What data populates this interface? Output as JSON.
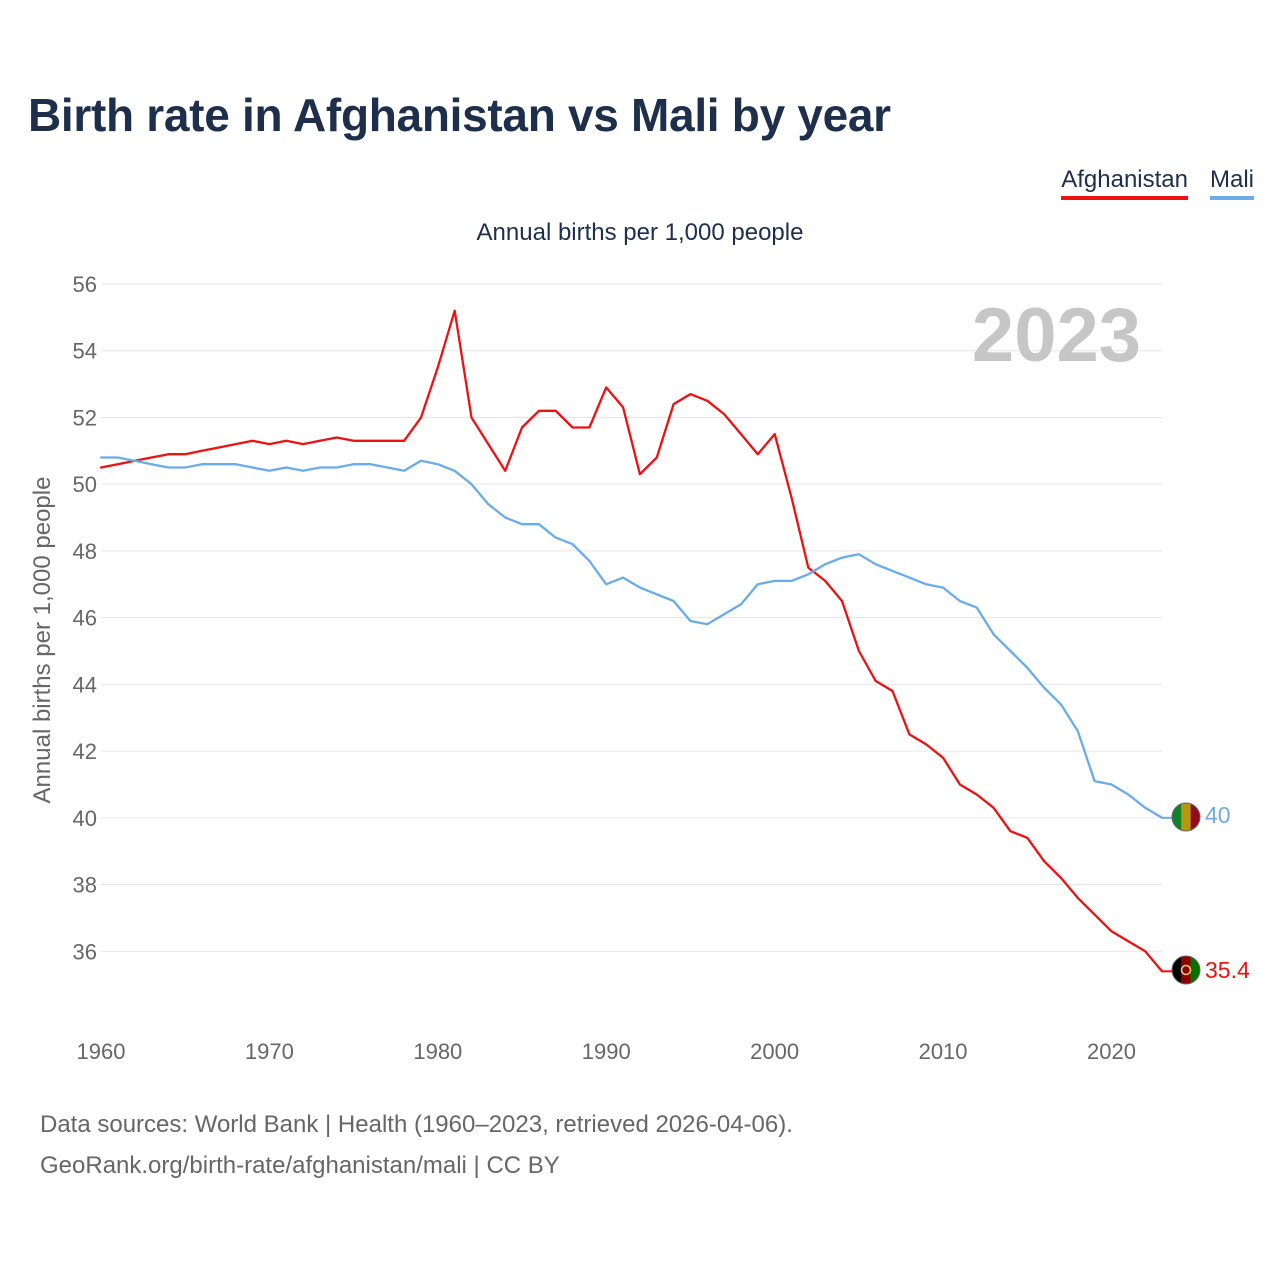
{
  "header": {
    "title": "Birth rate in Afghanistan vs Mali by year"
  },
  "legend": {
    "items": [
      {
        "label": "Afghanistan",
        "color": "#ee1111"
      },
      {
        "label": "Mali",
        "color": "#6aacea"
      }
    ]
  },
  "footer": {
    "line1": "Data sources: World Bank | Health (1960–2023, retrieved 2026-04-06).",
    "line2": "GeoRank.org/birth-rate/afghanistan/mali | CC BY"
  },
  "chart_data": {
    "type": "line",
    "title": "Birth rate in Afghanistan vs Mali by year",
    "subtitle": "Annual births per 1,000 people",
    "ylabel": "Annual births per 1,000 people",
    "xlabel": "",
    "year_label": "2023",
    "xlim": [
      1960,
      2023
    ],
    "ylim": [
      34,
      56
    ],
    "xticks": [
      1960,
      1970,
      1980,
      1990,
      2000,
      2010,
      2020
    ],
    "yticks": [
      36,
      38,
      40,
      42,
      44,
      46,
      48,
      50,
      52,
      54,
      56
    ],
    "grid": true,
    "legend_position": "top-right",
    "series": [
      {
        "name": "Afghanistan",
        "color": "#ee1111",
        "end_label": "35.4",
        "flag": "afghanistan-flag-icon",
        "x": [
          1960,
          1961,
          1962,
          1963,
          1964,
          1965,
          1966,
          1967,
          1968,
          1969,
          1970,
          1971,
          1972,
          1973,
          1974,
          1975,
          1976,
          1977,
          1978,
          1979,
          1980,
          1981,
          1982,
          1983,
          1984,
          1985,
          1986,
          1987,
          1988,
          1989,
          1990,
          1991,
          1992,
          1993,
          1994,
          1995,
          1996,
          1997,
          1998,
          1999,
          2000,
          2001,
          2002,
          2003,
          2004,
          2005,
          2006,
          2007,
          2008,
          2009,
          2010,
          2011,
          2012,
          2013,
          2014,
          2015,
          2016,
          2017,
          2018,
          2019,
          2020,
          2021,
          2022,
          2023
        ],
        "values": [
          50.5,
          50.6,
          50.7,
          50.8,
          50.9,
          50.9,
          51.0,
          51.1,
          51.2,
          51.3,
          51.2,
          51.3,
          51.2,
          51.3,
          51.4,
          51.3,
          51.3,
          51.3,
          51.3,
          52.0,
          53.5,
          55.2,
          52.0,
          51.2,
          50.4,
          51.7,
          52.2,
          52.2,
          51.7,
          51.7,
          52.9,
          52.3,
          50.3,
          50.8,
          52.4,
          52.7,
          52.5,
          52.1,
          51.5,
          50.9,
          51.5,
          49.6,
          47.5,
          47.1,
          46.5,
          45.0,
          44.1,
          43.8,
          42.5,
          42.2,
          41.8,
          41.0,
          40.7,
          40.3,
          39.6,
          39.4,
          38.7,
          38.2,
          37.6,
          37.1,
          36.6,
          36.3,
          36.0,
          35.4
        ]
      },
      {
        "name": "Mali",
        "color": "#6aacea",
        "end_label": "40",
        "flag": "mali-flag-icon",
        "x": [
          1960,
          1961,
          1962,
          1963,
          1964,
          1965,
          1966,
          1967,
          1968,
          1969,
          1970,
          1971,
          1972,
          1973,
          1974,
          1975,
          1976,
          1977,
          1978,
          1979,
          1980,
          1981,
          1982,
          1983,
          1984,
          1985,
          1986,
          1987,
          1988,
          1989,
          1990,
          1991,
          1992,
          1993,
          1994,
          1995,
          1996,
          1997,
          1998,
          1999,
          2000,
          2001,
          2002,
          2003,
          2004,
          2005,
          2006,
          2007,
          2008,
          2009,
          2010,
          2011,
          2012,
          2013,
          2014,
          2015,
          2016,
          2017,
          2018,
          2019,
          2020,
          2021,
          2022,
          2023
        ],
        "values": [
          50.8,
          50.8,
          50.7,
          50.6,
          50.5,
          50.5,
          50.6,
          50.6,
          50.6,
          50.5,
          50.4,
          50.5,
          50.4,
          50.5,
          50.5,
          50.6,
          50.6,
          50.5,
          50.4,
          50.7,
          50.6,
          50.4,
          50.0,
          49.4,
          49.0,
          48.8,
          48.8,
          48.4,
          48.2,
          47.7,
          47.0,
          47.2,
          46.9,
          46.7,
          46.5,
          45.9,
          45.8,
          46.1,
          46.4,
          47.0,
          47.1,
          47.1,
          47.3,
          47.6,
          47.8,
          47.9,
          47.6,
          47.4,
          47.2,
          47.0,
          46.9,
          46.5,
          46.3,
          45.5,
          45.0,
          44.5,
          43.9,
          43.4,
          42.6,
          41.1,
          41.0,
          40.7,
          40.3,
          40.0
        ]
      }
    ]
  }
}
